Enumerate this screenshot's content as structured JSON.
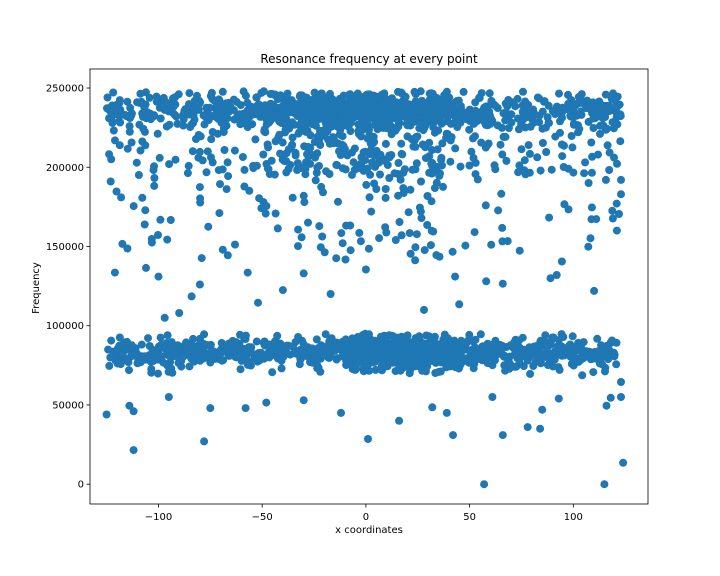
{
  "chart_data": {
    "type": "scatter",
    "title": "Resonance frequency at every point",
    "xlabel": "x coordinates",
    "ylabel": "Frequency",
    "xlim": [
      -133,
      136
    ],
    "ylim": [
      -12500,
      262000
    ],
    "xticks": [
      -100,
      -50,
      0,
      50,
      100
    ],
    "yticks": [
      0,
      50000,
      100000,
      150000,
      200000,
      250000
    ],
    "grid": false,
    "marker_color": "#1f77b4",
    "point_count": 2600,
    "clusters": [
      {
        "name": "upper band",
        "x_range": [
          -125,
          123
        ],
        "y_center": 236000,
        "y_spread": 6000,
        "dense_x": [
          -50,
          40
        ]
      },
      {
        "name": "lower band",
        "x_range": [
          -125,
          123
        ],
        "y_center": 83000,
        "y_spread": 4000,
        "dense_x": [
          -10,
          45
        ]
      }
    ],
    "points": [
      [
        -112,
        21500
      ],
      [
        -78,
        27000
      ],
      [
        1,
        28500
      ],
      [
        57,
        0
      ],
      [
        115,
        0
      ],
      [
        124,
        13500
      ],
      [
        -125,
        44000
      ],
      [
        -114,
        49500
      ],
      [
        -112,
        46000
      ],
      [
        -95,
        55000
      ],
      [
        -75,
        48000
      ],
      [
        -58,
        48000
      ],
      [
        -48,
        51500
      ],
      [
        -30,
        53000
      ],
      [
        -12,
        45000
      ],
      [
        16,
        40000
      ],
      [
        32,
        48500
      ],
      [
        39,
        45000
      ],
      [
        42,
        31000
      ],
      [
        61,
        55000
      ],
      [
        66,
        31000
      ],
      [
        78,
        36000
      ],
      [
        84,
        35000
      ],
      [
        85,
        47000
      ],
      [
        93,
        54000
      ],
      [
        116,
        49500
      ],
      [
        118,
        54500
      ],
      [
        123,
        55000
      ],
      [
        123,
        64500
      ],
      [
        -121,
        133500
      ],
      [
        -106,
        136500
      ],
      [
        -100,
        131000
      ],
      [
        -84,
        118500
      ],
      [
        -80,
        126000
      ],
      [
        -57,
        133500
      ],
      [
        -52,
        114500
      ],
      [
        -40,
        122500
      ],
      [
        -30,
        133000
      ],
      [
        -17,
        120000
      ],
      [
        0,
        135500
      ],
      [
        28,
        110000
      ],
      [
        43,
        131000
      ],
      [
        45,
        113500
      ],
      [
        58,
        128000
      ],
      [
        66,
        126500
      ],
      [
        89,
        130000
      ],
      [
        92,
        132000
      ],
      [
        110,
        122000
      ],
      [
        -97,
        105000
      ],
      [
        -90,
        108000
      ],
      [
        -123,
        191000
      ],
      [
        -118,
        181000
      ],
      [
        123,
        192000
      ],
      [
        123,
        183000
      ],
      [
        122,
        170500
      ],
      [
        121,
        160000
      ]
    ]
  }
}
